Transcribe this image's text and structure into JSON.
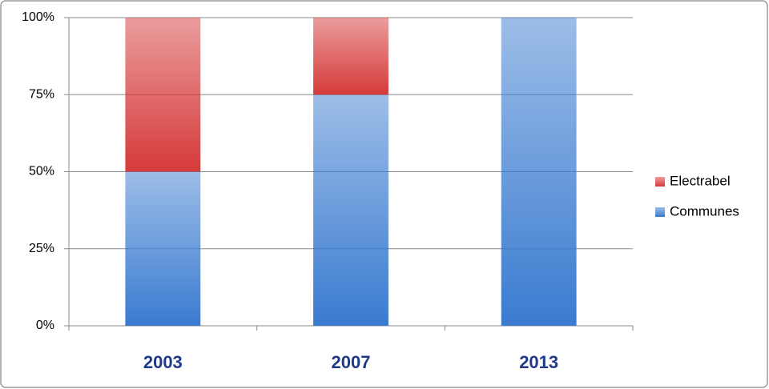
{
  "chart_data": {
    "type": "stacked-bar",
    "categories": [
      "2003",
      "2007",
      "2013"
    ],
    "series": [
      {
        "name": "Communes",
        "color": "#3a7bd0",
        "values": [
          50,
          75,
          100
        ]
      },
      {
        "name": "Electrabel",
        "color": "#d63a3a",
        "values": [
          50,
          25,
          0
        ]
      }
    ],
    "ylim": [
      0,
      100
    ],
    "yticks": [
      {
        "value": 0,
        "label": "0%"
      },
      {
        "value": 25,
        "label": "25%"
      },
      {
        "value": 50,
        "label": "50%"
      },
      {
        "value": 75,
        "label": "75%"
      },
      {
        "value": 100,
        "label": "100%"
      }
    ],
    "grid": true,
    "legend": "right"
  }
}
